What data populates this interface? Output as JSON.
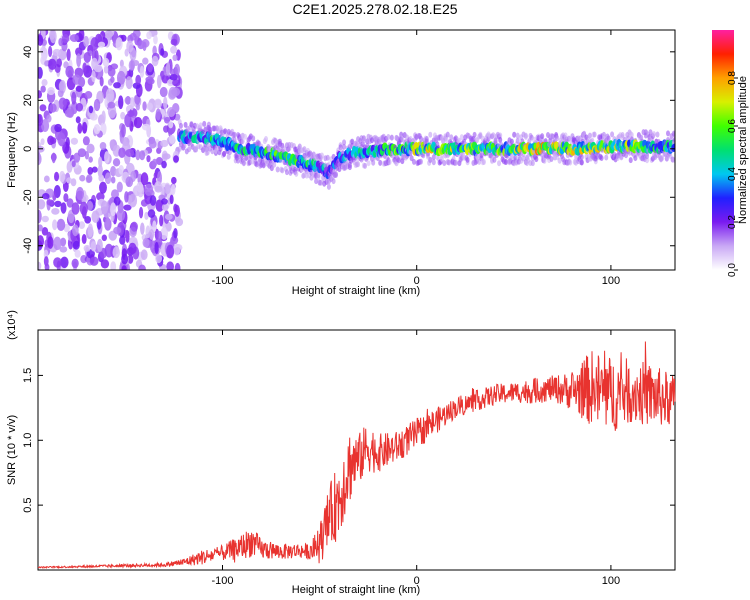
{
  "title": "C2E1.2025.278.02.18.E25",
  "chart_data": [
    {
      "type": "heatmap",
      "name": "spectrogram",
      "xlabel": "Height of straight line (km)",
      "ylabel": "Frequency (Hz)",
      "xlim": [
        -195,
        133
      ],
      "ylim": [
        -50,
        49
      ],
      "xticks": [
        -100,
        0,
        100
      ],
      "xtick_labels": [
        "-100",
        "0",
        "100"
      ],
      "yticks": [
        -40,
        -20,
        0,
        20,
        40
      ],
      "ytick_labels": [
        "-40",
        "-20",
        "0",
        "20",
        "40"
      ],
      "colorbar": {
        "label": "Normalized spectral amplitude",
        "range": [
          0,
          1
        ],
        "ticks": [
          0.0,
          0.2,
          0.4,
          0.6,
          0.8
        ],
        "tick_labels": [
          "0.0",
          "0.2",
          "0.4",
          "0.6",
          "0.8"
        ],
        "colors": [
          "#ffffff",
          "#c9a8f5",
          "#7a1bf0",
          "#2020ff",
          "#00c8f0",
          "#00e070",
          "#40ff00",
          "#d8f000",
          "#ffa000",
          "#ff2000",
          "#ff20a0"
        ]
      },
      "ridge": {
        "x": [
          -160,
          -140,
          -120,
          -105,
          -90,
          -75,
          -60,
          -50,
          -45,
          -40,
          -35,
          -25,
          -10,
          0,
          20,
          40,
          60,
          80,
          100,
          115,
          133
        ],
        "y": [
          7,
          6,
          5,
          4,
          0,
          -2,
          -5,
          -8,
          -10,
          -4,
          -2,
          -1,
          0,
          0,
          0,
          0,
          0,
          0,
          1,
          1,
          1
        ],
        "amplitude": [
          0.3,
          0.45,
          0.5,
          0.55,
          0.55,
          0.65,
          0.65,
          0.5,
          0.4,
          0.45,
          0.5,
          0.55,
          0.7,
          0.8,
          0.75,
          0.7,
          0.85,
          0.8,
          0.75,
          0.7,
          0.6
        ]
      },
      "noise_region": {
        "x_from": -195,
        "x_to": -122
      }
    },
    {
      "type": "line",
      "name": "snr",
      "xlabel": "Height of straight line (km)",
      "ylabel": "SNR (10 * v/v)",
      "multiplier_label": "(x10⁴)",
      "xlim": [
        -195,
        133
      ],
      "ylim": [
        0,
        1.85
      ],
      "xticks": [
        -100,
        0,
        100
      ],
      "xtick_labels": [
        "-100",
        "0",
        "100"
      ],
      "yticks": [
        0.5,
        1.0,
        1.5
      ],
      "ytick_labels": [
        "0.5",
        "1.0",
        "1.5"
      ],
      "series": [
        {
          "name": "SNR",
          "color": "#e8332f",
          "x": [
            -195,
            -160,
            -130,
            -120,
            -110,
            -100,
            -90,
            -85,
            -80,
            -70,
            -60,
            -55,
            -50,
            -45,
            -40,
            -35,
            -30,
            -25,
            -20,
            -10,
            0,
            10,
            20,
            30,
            40,
            50,
            60,
            70,
            80,
            90,
            100,
            110,
            120,
            133
          ],
          "y": [
            0.02,
            0.03,
            0.04,
            0.06,
            0.1,
            0.13,
            0.18,
            0.22,
            0.16,
            0.14,
            0.15,
            0.14,
            0.2,
            0.4,
            0.55,
            0.8,
            0.85,
            0.95,
            0.9,
            0.95,
            1.05,
            1.15,
            1.25,
            1.3,
            1.35,
            1.37,
            1.38,
            1.4,
            1.38,
            1.4,
            1.35,
            1.38,
            1.35,
            1.3
          ],
          "noise": [
            0.005,
            0.01,
            0.015,
            0.03,
            0.06,
            0.06,
            0.1,
            0.12,
            0.08,
            0.06,
            0.06,
            0.06,
            0.15,
            0.25,
            0.3,
            0.3,
            0.2,
            0.2,
            0.15,
            0.12,
            0.12,
            0.1,
            0.08,
            0.08,
            0.08,
            0.08,
            0.1,
            0.1,
            0.15,
            0.3,
            0.3,
            0.25,
            0.25,
            0.2
          ]
        }
      ]
    }
  ]
}
